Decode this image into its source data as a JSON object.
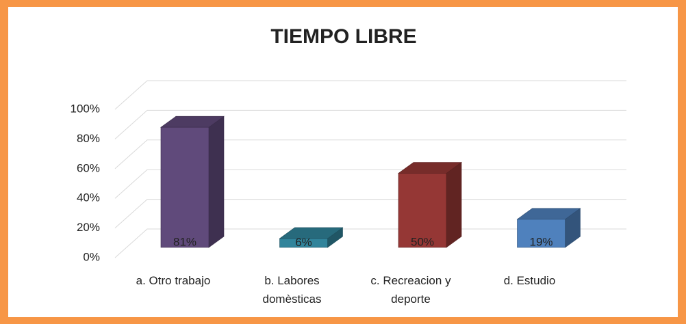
{
  "chart_data": {
    "type": "bar3d",
    "title": "TIEMPO LIBRE",
    "categories": [
      "a. Otro trabajo",
      "b. Labores domèsticas",
      "c. Recreacion y deporte",
      "d. Estudio"
    ],
    "values": [
      81,
      6,
      50,
      19
    ],
    "value_labels": [
      "81%",
      "6%",
      "50%",
      "19%"
    ],
    "colors": [
      "#604a7b",
      "#31849b",
      "#953735",
      "#4f81bd"
    ],
    "ylim": [
      0,
      100
    ],
    "yticks": [
      {
        "value": 0,
        "label": "0%"
      },
      {
        "value": 20,
        "label": "20%"
      },
      {
        "value": 40,
        "label": "40%"
      },
      {
        "value": 60,
        "label": "60%"
      },
      {
        "value": 80,
        "label": "80%"
      },
      {
        "value": 100,
        "label": "100%"
      }
    ],
    "grid": true
  }
}
